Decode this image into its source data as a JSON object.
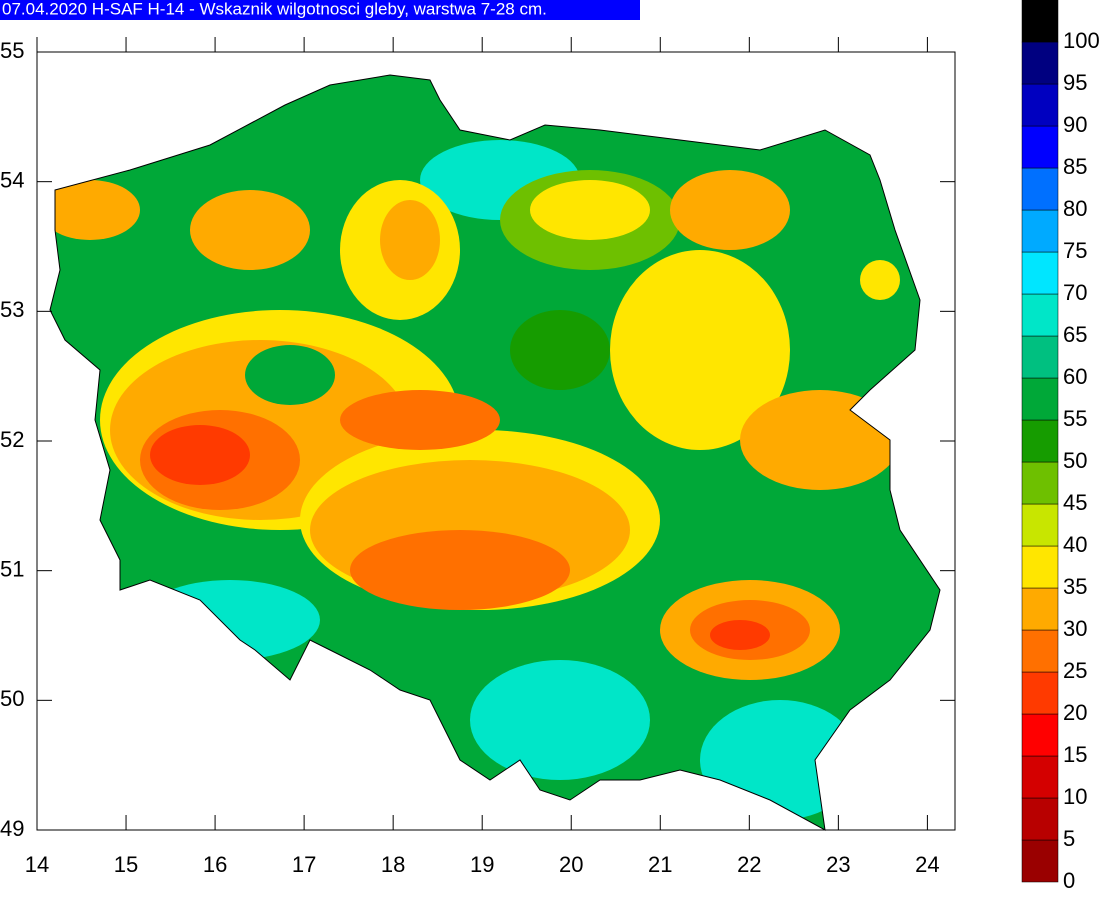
{
  "title": "07.04.2020 H-SAF H-14 - Wskaznik wilgotnosci gleby, warstwa 7-28 cm.",
  "map": {
    "xlim": [
      14,
      24.31
    ],
    "ylim": [
      49,
      55
    ],
    "xticks": [
      14,
      15,
      16,
      17,
      18,
      19,
      20,
      21,
      22,
      23,
      24
    ],
    "yticks": [
      49,
      50,
      51,
      52,
      53,
      54,
      55
    ]
  },
  "colorbar": {
    "clim": [
      0,
      105
    ],
    "levels": [
      0,
      5,
      10,
      15,
      20,
      25,
      30,
      35,
      40,
      45,
      50,
      55,
      60,
      65,
      70,
      75,
      80,
      85,
      90,
      95,
      100
    ],
    "colors": [
      "#9a0000",
      "#b80000",
      "#d40000",
      "#ff0000",
      "#ff3a00",
      "#ff7000",
      "#ffaa00",
      "#ffe600",
      "#c8e600",
      "#6ec000",
      "#169c00",
      "#00a838",
      "#00c080",
      "#00e6c8",
      "#00e6ff",
      "#00aaff",
      "#0070ff",
      "#0000ff",
      "#0000c0",
      "#000080",
      "#000000"
    ]
  }
}
